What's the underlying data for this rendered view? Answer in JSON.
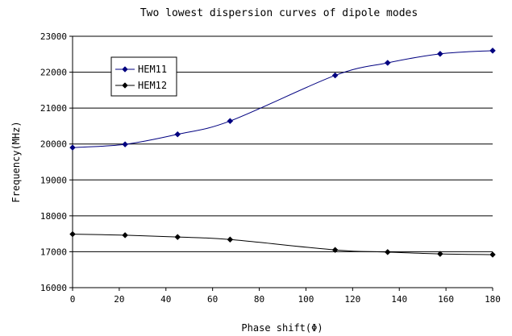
{
  "chart_data": {
    "type": "line",
    "title": "Two lowest dispersion curves of dipole modes",
    "xlabel": "Phase shift(Φ)",
    "ylabel": "Frequency(MHz)",
    "xlim": [
      0,
      180
    ],
    "ylim": [
      16000,
      23000
    ],
    "x_ticks": [
      0,
      20,
      40,
      60,
      80,
      100,
      120,
      140,
      160,
      180
    ],
    "y_ticks": [
      16000,
      17000,
      18000,
      19000,
      20000,
      21000,
      22000,
      23000
    ],
    "grid": "horizontal",
    "legend_position": "top-left",
    "x": [
      0,
      22.5,
      45,
      67.5,
      112.5,
      135,
      157.5,
      180
    ],
    "series": [
      {
        "name": "HEM11",
        "color": "#000080",
        "marker": "diamond",
        "values": [
          19900,
          19990,
          20270,
          20640,
          21910,
          22260,
          22510,
          22600
        ]
      },
      {
        "name": "HEM12",
        "color": "#000000",
        "marker": "diamond",
        "values": [
          17490,
          17460,
          17410,
          17340,
          17050,
          16990,
          16940,
          16920
        ]
      }
    ]
  }
}
